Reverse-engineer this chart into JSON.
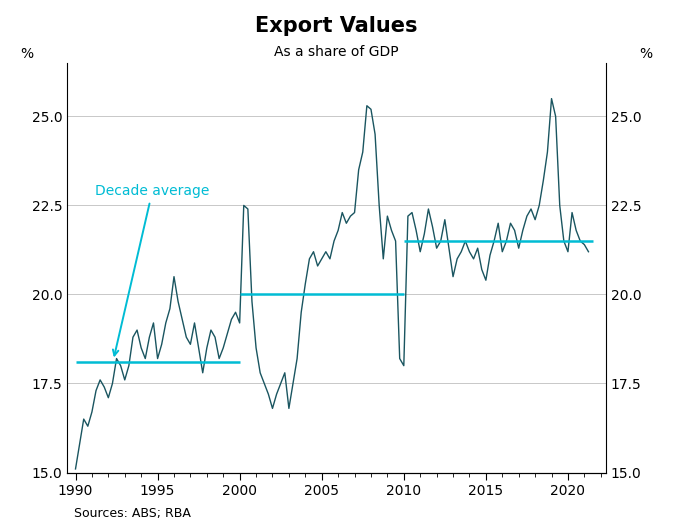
{
  "title": "Export Values",
  "subtitle": "As a share of GDP",
  "ylabel_left": "%",
  "ylabel_right": "%",
  "source": "Sources: ABS; RBA",
  "ylim": [
    15.0,
    26.5
  ],
  "yticks": [
    15.0,
    17.5,
    20.0,
    22.5,
    25.0
  ],
  "xlim_left": 1989.5,
  "xlim_right": 2022.3,
  "xticks": [
    1990,
    1995,
    2000,
    2005,
    2010,
    2015,
    2020
  ],
  "line_color": "#1a5560",
  "avg_line_color": "#00bcd4",
  "annotation_color": "#00bcd4",
  "annotation_text": "Decade average",
  "background_color": "#ffffff",
  "grid_color": "#c8c8c8",
  "title_fontsize": 15,
  "subtitle_fontsize": 10,
  "tick_fontsize": 10,
  "source_fontsize": 9,
  "decade_averages": [
    {
      "x_start": 1990.0,
      "x_end": 2000.0,
      "y": 18.1
    },
    {
      "x_start": 2000.0,
      "x_end": 2010.0,
      "y": 20.0
    },
    {
      "x_start": 2010.0,
      "x_end": 2021.5,
      "y": 21.5
    }
  ],
  "years": [
    1990.0,
    1990.25,
    1990.5,
    1990.75,
    1991.0,
    1991.25,
    1991.5,
    1991.75,
    1992.0,
    1992.25,
    1992.5,
    1992.75,
    1993.0,
    1993.25,
    1993.5,
    1993.75,
    1994.0,
    1994.25,
    1994.5,
    1994.75,
    1995.0,
    1995.25,
    1995.5,
    1995.75,
    1996.0,
    1996.25,
    1996.5,
    1996.75,
    1997.0,
    1997.25,
    1997.5,
    1997.75,
    1998.0,
    1998.25,
    1998.5,
    1998.75,
    1999.0,
    1999.25,
    1999.5,
    1999.75,
    2000.0,
    2000.25,
    2000.5,
    2000.75,
    2001.0,
    2001.25,
    2001.5,
    2001.75,
    2002.0,
    2002.25,
    2002.5,
    2002.75,
    2003.0,
    2003.25,
    2003.5,
    2003.75,
    2004.0,
    2004.25,
    2004.5,
    2004.75,
    2005.0,
    2005.25,
    2005.5,
    2005.75,
    2006.0,
    2006.25,
    2006.5,
    2006.75,
    2007.0,
    2007.25,
    2007.5,
    2007.75,
    2008.0,
    2008.25,
    2008.5,
    2008.75,
    2009.0,
    2009.25,
    2009.5,
    2009.75,
    2010.0,
    2010.25,
    2010.5,
    2010.75,
    2011.0,
    2011.25,
    2011.5,
    2011.75,
    2012.0,
    2012.25,
    2012.5,
    2012.75,
    2013.0,
    2013.25,
    2013.5,
    2013.75,
    2014.0,
    2014.25,
    2014.5,
    2014.75,
    2015.0,
    2015.25,
    2015.5,
    2015.75,
    2016.0,
    2016.25,
    2016.5,
    2016.75,
    2017.0,
    2017.25,
    2017.5,
    2017.75,
    2018.0,
    2018.25,
    2018.5,
    2018.75,
    2019.0,
    2019.25,
    2019.5,
    2019.75,
    2020.0,
    2020.25,
    2020.5,
    2020.75,
    2021.0,
    2021.25
  ],
  "values": [
    15.1,
    15.8,
    16.5,
    16.3,
    16.7,
    17.3,
    17.6,
    17.4,
    17.1,
    17.5,
    18.2,
    18.0,
    17.6,
    18.0,
    18.8,
    19.0,
    18.5,
    18.2,
    18.8,
    19.2,
    18.2,
    18.6,
    19.2,
    19.6,
    20.5,
    19.8,
    19.3,
    18.8,
    18.6,
    19.2,
    18.5,
    17.8,
    18.5,
    19.0,
    18.8,
    18.2,
    18.5,
    18.9,
    19.3,
    19.5,
    19.2,
    22.5,
    22.4,
    19.8,
    18.5,
    17.8,
    17.5,
    17.2,
    16.8,
    17.2,
    17.5,
    17.8,
    16.8,
    17.5,
    18.2,
    19.5,
    20.3,
    21.0,
    21.2,
    20.8,
    21.0,
    21.2,
    21.0,
    21.5,
    21.8,
    22.3,
    22.0,
    22.2,
    22.3,
    23.5,
    24.0,
    25.3,
    25.2,
    24.5,
    22.5,
    21.0,
    22.2,
    21.8,
    21.5,
    18.2,
    18.0,
    22.2,
    22.3,
    21.8,
    21.2,
    21.7,
    22.4,
    21.9,
    21.3,
    21.5,
    22.1,
    21.3,
    20.5,
    21.0,
    21.2,
    21.5,
    21.2,
    21.0,
    21.3,
    20.7,
    20.4,
    21.1,
    21.5,
    22.0,
    21.2,
    21.5,
    22.0,
    21.8,
    21.3,
    21.8,
    22.2,
    22.4,
    22.1,
    22.5,
    23.2,
    24.0,
    25.5,
    25.0,
    22.5,
    21.5,
    21.2,
    22.3,
    21.8,
    21.5,
    21.4,
    21.2
  ]
}
